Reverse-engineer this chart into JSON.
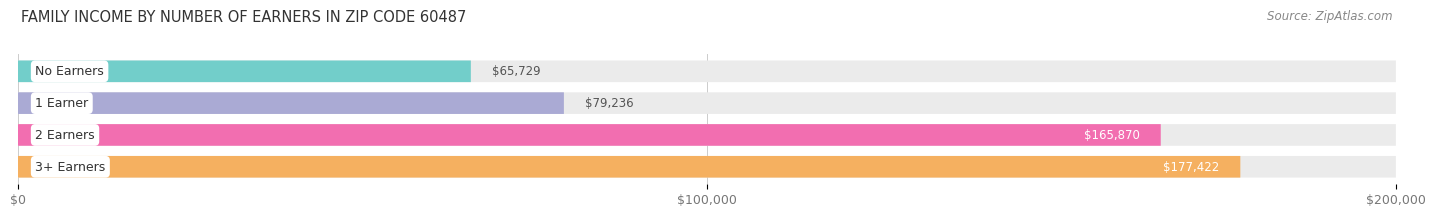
{
  "title": "FAMILY INCOME BY NUMBER OF EARNERS IN ZIP CODE 60487",
  "source": "Source: ZipAtlas.com",
  "categories": [
    "No Earners",
    "1 Earner",
    "2 Earners",
    "3+ Earners"
  ],
  "values": [
    65729,
    79236,
    165870,
    177422
  ],
  "labels": [
    "$65,729",
    "$79,236",
    "$165,870",
    "$177,422"
  ],
  "bar_colors": [
    "#72ceca",
    "#aaaad4",
    "#f26eb0",
    "#f5b060"
  ],
  "bar_bg_color": "#ebebeb",
  "label_colors_inside": [
    "#ffffff",
    "#ffffff",
    "#ffffff",
    "#ffffff"
  ],
  "label_colors_outside": [
    "#555555",
    "#555555",
    "#555555",
    "#555555"
  ],
  "xlim": [
    0,
    200000
  ],
  "xticks": [
    0,
    100000,
    200000
  ],
  "xtick_labels": [
    "$0",
    "$100,000",
    "$200,000"
  ],
  "title_fontsize": 10.5,
  "source_fontsize": 8.5,
  "bar_label_fontsize": 8.5,
  "cat_label_fontsize": 9,
  "tick_fontsize": 9,
  "background_color": "#ffffff",
  "inside_threshold": 130000
}
